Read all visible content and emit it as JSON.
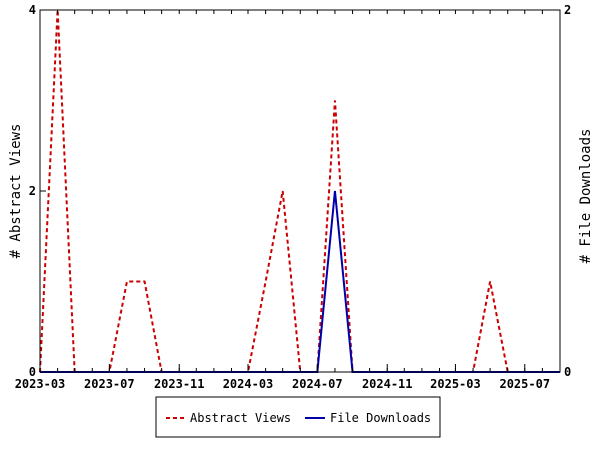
{
  "chart_data": {
    "type": "line",
    "x_type": "date",
    "x": [
      "2023-03-01",
      "2023-04-01",
      "2023-05-01",
      "2023-06-01",
      "2023-07-01",
      "2023-08-01",
      "2023-09-01",
      "2023-10-01",
      "2023-11-01",
      "2023-12-01",
      "2024-01-01",
      "2024-02-01",
      "2024-03-01",
      "2024-04-01",
      "2024-05-01",
      "2024-06-01",
      "2024-07-01",
      "2024-08-01",
      "2024-09-01",
      "2024-10-01",
      "2024-11-01",
      "2024-12-01",
      "2025-01-01",
      "2025-02-01",
      "2025-03-01",
      "2025-04-01",
      "2025-05-01",
      "2025-06-01",
      "2025-07-01",
      "2025-08-01",
      "2025-09-01"
    ],
    "series": [
      {
        "name": "Abstract Views",
        "axis": "left",
        "color": "#cc0000",
        "style": "dashed",
        "values": [
          0,
          4,
          0,
          0,
          0,
          1,
          1,
          0,
          0,
          0,
          0,
          0,
          0,
          1,
          2,
          0,
          0,
          3,
          0,
          0,
          0,
          0,
          0,
          0,
          0,
          0,
          1,
          0,
          0,
          0,
          0
        ]
      },
      {
        "name": "File Downloads",
        "axis": "right",
        "color": "#0000aa",
        "style": "solid",
        "values": [
          0,
          0,
          0,
          0,
          0,
          0,
          0,
          0,
          0,
          0,
          0,
          0,
          0,
          0,
          0,
          0,
          0,
          1,
          0,
          0,
          0,
          0,
          0,
          0,
          0,
          0,
          0,
          0,
          0,
          0,
          0
        ]
      }
    ],
    "x_ticks": [
      "2023-03",
      "2023-07",
      "2023-11",
      "2024-03",
      "2024-07",
      "2024-11",
      "2025-03",
      "2025-07"
    ],
    "ylabel_left": "# Abstract Views",
    "ylabel_right": "# File Downloads",
    "y_left_ticks": [
      0,
      2,
      4
    ],
    "y_right_ticks": [
      0,
      2
    ],
    "ylim_left": [
      0,
      4
    ],
    "ylim_right": [
      0,
      2
    ],
    "grid": false,
    "legend_position": "bottom"
  }
}
